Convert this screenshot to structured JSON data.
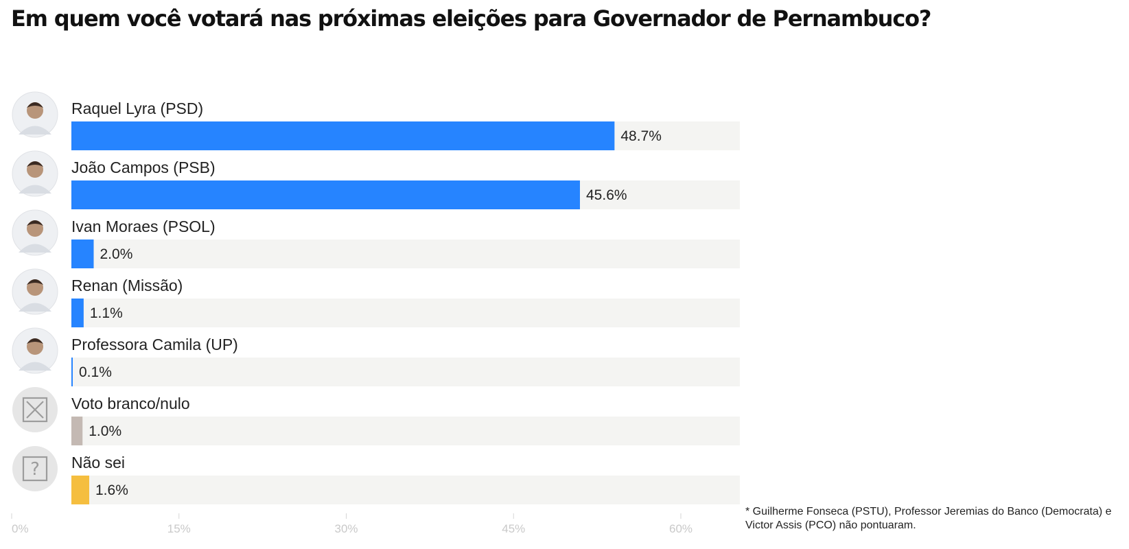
{
  "title": "Em quem você votará nas próximas eleições para Governador de Pernambuco?",
  "footnote": "* Guilherme Fonseca (PSTU), Professor Jeremias do Banco (Democrata) e Victor Assis (PCO)  não pontuaram.",
  "chart_data": {
    "type": "bar",
    "orientation": "horizontal",
    "categories": [
      "Raquel Lyra (PSD)",
      "João Campos (PSB)",
      "Ivan Moraes (PSOL)",
      "Renan (Missão)",
      "Professora Camila (UP)",
      "Voto branco/nulo",
      "Não sei"
    ],
    "values": [
      48.7,
      45.6,
      2.0,
      1.1,
      0.1,
      1.0,
      1.6
    ],
    "value_labels": [
      "48.7%",
      "45.6%",
      "2.0%",
      "1.1%",
      "0.1%",
      "1.0%",
      "1.6%"
    ],
    "bar_colors": [
      "#2684FF",
      "#2684FF",
      "#2684FF",
      "#2684FF",
      "#2684FF",
      "#C4B9B3",
      "#F5BE3F"
    ],
    "row_icons": [
      "candidate-photo",
      "candidate-photo",
      "candidate-photo",
      "candidate-photo",
      "candidate-photo",
      "x-box-icon",
      "question-box-icon"
    ],
    "track_color": "#F4F4F2",
    "xlim": [
      0,
      60
    ],
    "x_ticks": [
      0,
      15,
      30,
      45,
      60
    ],
    "x_tick_labels": [
      "0%",
      "15%",
      "30%",
      "45%",
      "60%"
    ],
    "grid": false
  }
}
